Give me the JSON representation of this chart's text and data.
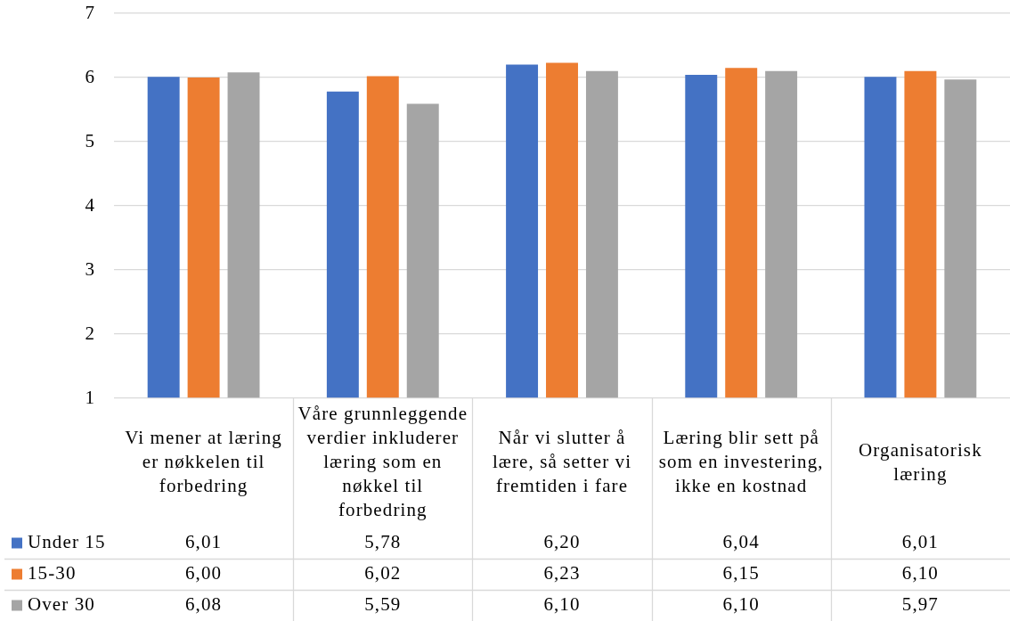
{
  "chart_data": {
    "type": "bar",
    "categories": [
      "Vi mener at læring er nøkkelen til forbedring",
      "Våre grunnleggende verdier inkluderer læring som en nøkkel til forbedring",
      "Når vi slutter å lære, så setter vi fremtiden i fare",
      "Læring blir sett på som en investering, ikke en kostnad",
      "Organisatorisk læring"
    ],
    "series": [
      {
        "name": "Under 15",
        "color": "#4472c4",
        "values": [
          6.01,
          5.78,
          6.2,
          6.04,
          6.01
        ],
        "value_labels": [
          "6,01",
          "5,78",
          "6,20",
          "6,04",
          "6,01"
        ]
      },
      {
        "name": "15-30",
        "color": "#ed7d31",
        "values": [
          6.0,
          6.02,
          6.23,
          6.15,
          6.1
        ],
        "value_labels": [
          "6,00",
          "6,02",
          "6,23",
          "6,15",
          "6,10"
        ]
      },
      {
        "name": "Over 30",
        "color": "#a5a5a5",
        "values": [
          6.08,
          5.59,
          6.1,
          6.1,
          5.97
        ],
        "value_labels": [
          "6,08",
          "5,59",
          "6,10",
          "6,10",
          "5,97"
        ]
      }
    ],
    "ylim": [
      1,
      7
    ],
    "yticks": [
      1,
      2,
      3,
      4,
      5,
      6,
      7
    ],
    "grid": "y",
    "legend": "bottom"
  }
}
